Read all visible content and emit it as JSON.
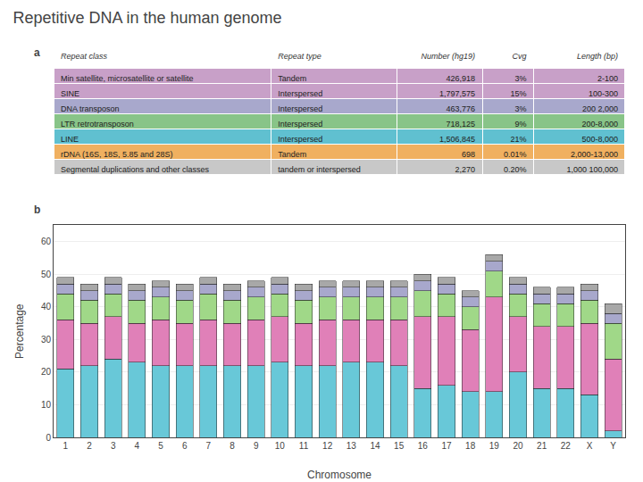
{
  "chart_data": {
    "type": "bar",
    "stacked": true,
    "title": "Repetitive DNA in the human genome",
    "annotations": [
      "a",
      "b"
    ],
    "table": {
      "headers": [
        "Repeat class",
        "Repeat type",
        "Number (hg19)",
        "Cvg",
        "Length (bp)"
      ],
      "rows": [
        [
          "Min satellite, microsatellite or satellite",
          "Tandem",
          "426,918",
          "3%",
          "2-100"
        ],
        [
          "SINE",
          "Interspersed",
          "1,797,575",
          "15%",
          "100-300"
        ],
        [
          "DNA transposon",
          "Interspersed",
          "463,776",
          "3%",
          "200 2,000"
        ],
        [
          "LTR retrotransposon",
          "Interspersed",
          "718,125",
          "9%",
          "200-8,000"
        ],
        [
          "LINE",
          "Interspersed",
          "1,506,845",
          "21%",
          "500-8,000"
        ],
        [
          "rDNA (16S, 18S, 5.85 and 28S)",
          "Tandem",
          "698",
          "0.01%",
          "2,000-13,000"
        ],
        [
          "Segmental duplications and other classes",
          "tandem or interspersed",
          "2,270",
          "0.20%",
          "1,000 100,000"
        ]
      ],
      "row_colors": [
        "#c8a0c8",
        "#c8a0c8",
        "#a8a8cc",
        "#88c488",
        "#60c0d0",
        "#f0b060",
        "#c8c8c8"
      ]
    },
    "categories": [
      "1",
      "2",
      "3",
      "4",
      "5",
      "6",
      "7",
      "8",
      "9",
      "10",
      "11",
      "12",
      "13",
      "14",
      "15",
      "16",
      "17",
      "18",
      "19",
      "20",
      "21",
      "22",
      "X",
      "Y"
    ],
    "series": [
      {
        "color": "#68c8d8",
        "values": [
          21,
          22,
          24,
          23,
          22,
          22,
          22,
          22,
          22,
          23,
          22,
          22,
          23,
          23,
          22,
          15,
          16,
          14,
          14,
          20,
          15,
          15,
          13,
          2
        ]
      },
      {
        "color": "#e080b8",
        "values": [
          15,
          13,
          13,
          12,
          14,
          13,
          14,
          13,
          14,
          14,
          13,
          14,
          13,
          13,
          14,
          22,
          21,
          19,
          29,
          17,
          19,
          19,
          22,
          22
        ]
      },
      {
        "color": "#a0d888",
        "values": [
          8,
          7,
          7,
          7,
          7,
          7,
          8,
          7,
          7,
          7,
          7,
          7,
          7,
          7,
          7,
          8,
          7,
          7,
          8,
          7,
          7,
          7,
          7,
          11
        ]
      },
      {
        "color": "#a8a8cc",
        "values": [
          3,
          3,
          3,
          3,
          3,
          3,
          3,
          3,
          3,
          3,
          3,
          3,
          3,
          3,
          3,
          3,
          3,
          3,
          3,
          3,
          3,
          3,
          3,
          3
        ]
      },
      {
        "color": "#a8a8a8",
        "values": [
          2,
          2,
          2,
          2,
          2,
          2,
          2,
          2,
          2,
          2,
          2,
          2,
          2,
          2,
          2,
          2,
          2,
          2,
          2,
          2,
          2,
          2,
          2,
          3
        ]
      }
    ],
    "xlabel": "Chromosome",
    "ylabel": "Percentage",
    "ylim": [
      0,
      65
    ],
    "yticks": [
      0,
      10,
      20,
      30,
      40,
      50,
      60
    ],
    "grid": true
  }
}
